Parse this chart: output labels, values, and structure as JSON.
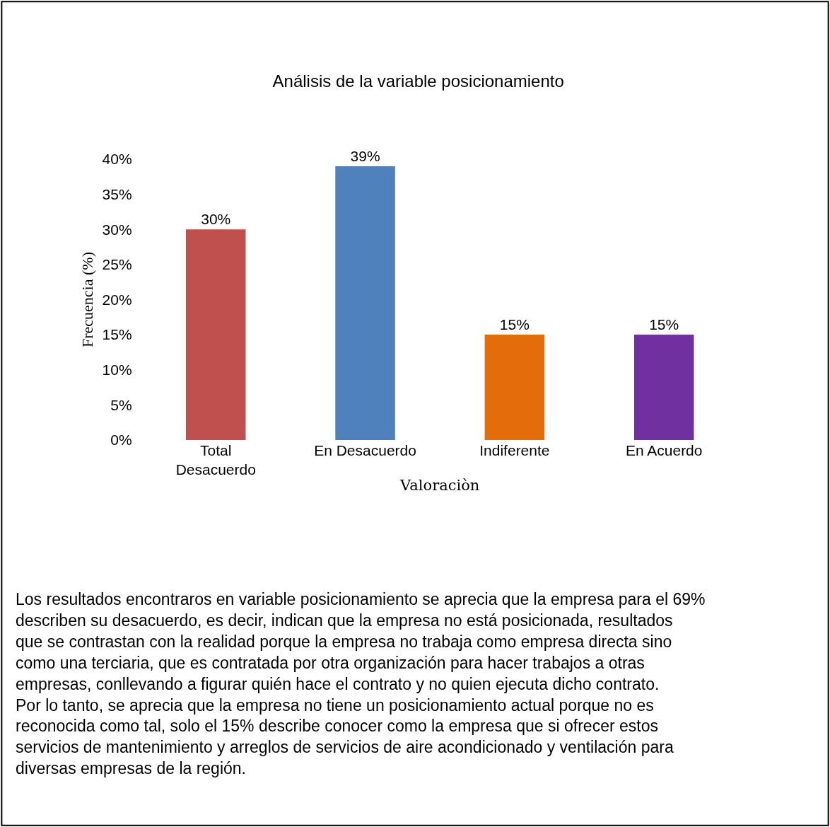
{
  "chart_data": {
    "type": "bar",
    "title": "Análisis de la variable posicionamiento",
    "xlabel": "Valoraciòn",
    "ylabel": "Frecuencia (%)",
    "categories": [
      "Total Desacuerdo",
      "En Desacuerdo",
      "Indiferente",
      "En Acuerdo"
    ],
    "values": [
      30,
      39,
      15,
      15
    ],
    "colors": [
      "#c0504d",
      "#4f81bd",
      "#e46c0a",
      "#7030a0"
    ],
    "value_labels": [
      "30%",
      "39%",
      "15%",
      "15%"
    ],
    "ylim": [
      0,
      40
    ],
    "yticks": [
      {
        "value": 0,
        "label": "0%"
      },
      {
        "value": 5,
        "label": "5%"
      },
      {
        "value": 10,
        "label": "10%"
      },
      {
        "value": 15,
        "label": "15%"
      },
      {
        "value": 20,
        "label": "20%"
      },
      {
        "value": 25,
        "label": "25%"
      },
      {
        "value": 30,
        "label": "30%"
      },
      {
        "value": 35,
        "label": "35%"
      },
      {
        "value": 40,
        "label": "40%"
      }
    ],
    "legend": false,
    "annotations": [
      "Los resultados encontraros en variable posicionamiento se aprecia que la empresa para el 69% describen su desacuerdo, es decir, indican que la empresa no está posicionada, resultados que se contrastan con la realidad porque la empresa no trabaja como empresa directa sino como una terciaria, que es contratada por otra organización para hacer trabajos a otras empresas, conllevando a figurar quién hace el contrato y no quien ejecuta dicho contrato. Por lo tanto, se aprecia que la empresa no tiene un posicionamiento actual porque no es reconocida como tal, solo el 15% describe conocer como la empresa que si ofrecer estos servicios de mantenimiento y arreglos de servicios de aire acondicionado y ventilación para diversas empresas de la región."
    ]
  }
}
